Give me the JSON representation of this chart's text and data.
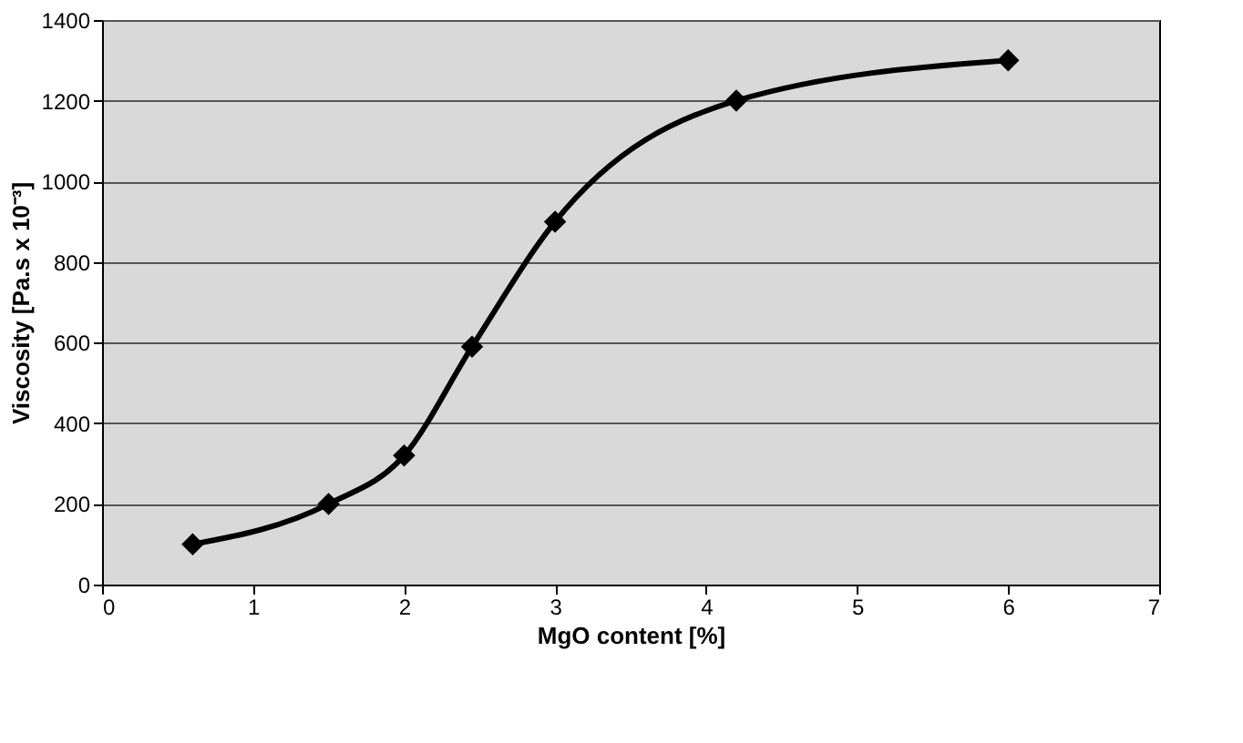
{
  "chart_data": {
    "type": "line",
    "xlabel": "MgO content [%]",
    "ylabel": "Viscosity [Pa.s x 10⁻³]",
    "x": [
      0.6,
      1.5,
      2,
      2.45,
      3,
      4.2,
      6
    ],
    "series": [
      {
        "color": "#000000",
        "values": [
          100,
          200,
          320,
          590,
          900,
          1200,
          1300
        ]
      }
    ],
    "xlim": [
      0,
      7
    ],
    "xticks": [
      0,
      1,
      2,
      3,
      4,
      5,
      6,
      7
    ],
    "ylim": [
      0,
      1400
    ],
    "yticks": [
      0,
      200,
      400,
      600,
      800,
      1000,
      1200,
      1400
    ],
    "grid": "y",
    "marker": "diamond",
    "line_style": "solid"
  }
}
